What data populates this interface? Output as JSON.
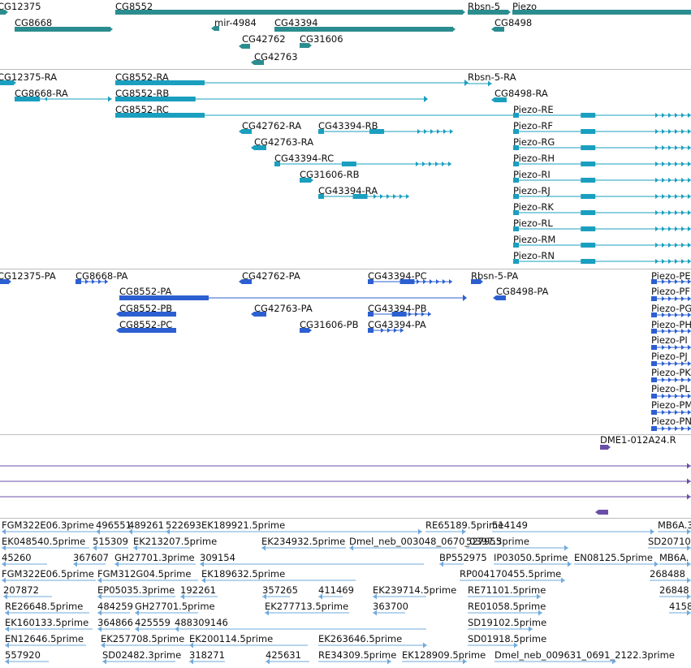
{
  "tracks": [
    {
      "id": "genes",
      "color": "#2b8d8f",
      "features": [
        {
          "label": "CG12375",
          "strand": "+"
        },
        {
          "label": "CG8552",
          "strand": "+"
        },
        {
          "label": "Rbsn-5",
          "strand": "+"
        },
        {
          "label": "Piezo",
          "strand": "+"
        },
        {
          "label": "CG8668",
          "strand": "+"
        },
        {
          "label": "mir-4984",
          "strand": "-"
        },
        {
          "label": "CG43394",
          "strand": "+"
        },
        {
          "label": "CG8498",
          "strand": "-"
        },
        {
          "label": "CG42762",
          "strand": "-"
        },
        {
          "label": "CG31606",
          "strand": "+"
        },
        {
          "label": "CG42763",
          "strand": "-"
        }
      ]
    },
    {
      "id": "transcripts",
      "color": "#1a9fbf",
      "features": [
        {
          "label": "CG12375-RA",
          "strand": "+"
        },
        {
          "label": "CG8552-RA",
          "strand": "-"
        },
        {
          "label": "Rbsn-5-RA",
          "strand": "+"
        },
        {
          "label": "CG8668-RA",
          "strand": "+"
        },
        {
          "label": "CG8552-RB",
          "strand": "-"
        },
        {
          "label": "CG8498-RA",
          "strand": "-"
        },
        {
          "label": "CG8552-RC",
          "strand": "-"
        },
        {
          "label": "Piezo-RE",
          "strand": "+"
        },
        {
          "label": "CG42762-RA",
          "strand": "-"
        },
        {
          "label": "CG43394-RB",
          "strand": "+"
        },
        {
          "label": "Piezo-RF",
          "strand": "+"
        },
        {
          "label": "CG42763-RA",
          "strand": "-"
        },
        {
          "label": "Piezo-RG",
          "strand": "+"
        },
        {
          "label": "CG43394-RC",
          "strand": "+"
        },
        {
          "label": "Piezo-RH",
          "strand": "+"
        },
        {
          "label": "CG31606-RB",
          "strand": "+"
        },
        {
          "label": "Piezo-RI",
          "strand": "+"
        },
        {
          "label": "CG43394-RA",
          "strand": "+"
        },
        {
          "label": "Piezo-RJ",
          "strand": "+"
        },
        {
          "label": "Piezo-RK",
          "strand": "+"
        },
        {
          "label": "Piezo-RL",
          "strand": "+"
        },
        {
          "label": "Piezo-RM",
          "strand": "+"
        },
        {
          "label": "Piezo-RN",
          "strand": "+"
        }
      ]
    },
    {
      "id": "proteins",
      "color": "#2c5fd1",
      "features": [
        {
          "label": "CG12375-PA",
          "strand": "+"
        },
        {
          "label": "CG8668-PA",
          "strand": "+"
        },
        {
          "label": "CG42762-PA",
          "strand": "-"
        },
        {
          "label": "CG43394-PC",
          "strand": "+"
        },
        {
          "label": "Rbsn-5-PA",
          "strand": "+"
        },
        {
          "label": "Piezo-PE",
          "strand": "+"
        },
        {
          "label": "CG8552-PA",
          "strand": "-"
        },
        {
          "label": "CG8498-PA",
          "strand": "-"
        },
        {
          "label": "Piezo-PF",
          "strand": "+"
        },
        {
          "label": "CG8552-PB",
          "strand": "-"
        },
        {
          "label": "CG42763-PA",
          "strand": "-"
        },
        {
          "label": "CG43394-PB",
          "strand": "+"
        },
        {
          "label": "Piezo-PG",
          "strand": "+"
        },
        {
          "label": "CG8552-PC",
          "strand": "-"
        },
        {
          "label": "CG31606-PB",
          "strand": "+"
        },
        {
          "label": "CG43394-PA",
          "strand": "+"
        },
        {
          "label": "Piezo-PH",
          "strand": "+"
        },
        {
          "label": "Piezo-PI",
          "strand": "+"
        },
        {
          "label": "Piezo-PJ",
          "strand": "+"
        },
        {
          "label": "Piezo-PK",
          "strand": "+"
        },
        {
          "label": "Piezo-PL",
          "strand": "+"
        },
        {
          "label": "Piezo-PM",
          "strand": "+"
        },
        {
          "label": "Piezo-PN",
          "strand": "+"
        }
      ]
    },
    {
      "id": "clones",
      "color": "#6a4fa8",
      "features": [
        {
          "label": "DME1-012A24.R",
          "strand": "+"
        },
        {
          "label": "",
          "strand": "+"
        },
        {
          "label": "",
          "strand": "+"
        },
        {
          "label": "",
          "strand": "+"
        },
        {
          "label": "",
          "strand": "-"
        }
      ]
    },
    {
      "id": "ests",
      "color": "#6fa9db",
      "features": [
        {
          "label": "FGM322E06.3prime",
          "strand": "-"
        },
        {
          "label": "496551",
          "strand": "-"
        },
        {
          "label": "489261",
          "strand": "-"
        },
        {
          "label": "522693",
          "strand": "-"
        },
        {
          "label": "EK189921.5prime",
          "strand": "+"
        },
        {
          "label": "RE65189.5prime",
          "strand": "+"
        },
        {
          "label": "514149",
          "strand": "+"
        },
        {
          "label": "MB6A.3",
          "strand": "+"
        },
        {
          "label": "EK048540.5prime",
          "strand": "-"
        },
        {
          "label": "515309",
          "strand": "-"
        },
        {
          "label": "EK213207.5prime",
          "strand": "-"
        },
        {
          "label": "EK234932.5prime",
          "strand": "-"
        },
        {
          "label": "Dmel_neb_003048_0670_0397.3prime",
          "strand": "-"
        },
        {
          "label": "527955",
          "strand": "+"
        },
        {
          "label": "SD20710",
          "strand": "+"
        },
        {
          "label": "45260",
          "strand": "-"
        },
        {
          "label": "367607",
          "strand": "-"
        },
        {
          "label": "GH27701.3prime",
          "strand": "-"
        },
        {
          "label": "309154",
          "strand": "-"
        },
        {
          "label": "BP552975",
          "strand": "-"
        },
        {
          "label": "IP03050.5prime",
          "strand": "+"
        },
        {
          "label": "EN08125.5prime",
          "strand": "+"
        },
        {
          "label": "MB6A.",
          "strand": "+"
        },
        {
          "label": "FGM322E06.5prime",
          "strand": "-"
        },
        {
          "label": "FGM312G04.5prime",
          "strand": "-"
        },
        {
          "label": "EK189632.5prime",
          "strand": "-"
        },
        {
          "label": "RP004170455.5prime",
          "strand": "+"
        },
        {
          "label": "268488",
          "strand": "+"
        },
        {
          "label": "207872",
          "strand": "-"
        },
        {
          "label": "EP05035.3prime",
          "strand": "-"
        },
        {
          "label": "192261",
          "strand": "-"
        },
        {
          "label": "357265",
          "strand": "-"
        },
        {
          "label": "411469",
          "strand": "-"
        },
        {
          "label": "EK239714.5prime",
          "strand": "-"
        },
        {
          "label": "RE71101.5prime",
          "strand": "+"
        },
        {
          "label": "26848",
          "strand": "+"
        },
        {
          "label": "RE26648.5prime",
          "strand": "-"
        },
        {
          "label": "484259",
          "strand": "-"
        },
        {
          "label": "GH27701.5prime",
          "strand": "-"
        },
        {
          "label": "EK277713.5prime",
          "strand": "-"
        },
        {
          "label": "363700",
          "strand": "-"
        },
        {
          "label": "RE01058.5prime",
          "strand": "+"
        },
        {
          "label": "4158",
          "strand": "+"
        },
        {
          "label": "EK160133.5prime",
          "strand": "-"
        },
        {
          "label": "364866",
          "strand": "-"
        },
        {
          "label": "425559",
          "strand": "-"
        },
        {
          "label": "488309146",
          "strand": "-"
        },
        {
          "label": "SD19102.5prime",
          "strand": "+"
        },
        {
          "label": "EN12646.5prime",
          "strand": "-"
        },
        {
          "label": "EK257708.5prime",
          "strand": "-"
        },
        {
          "label": "EK200114.5prime",
          "strand": "-"
        },
        {
          "label": "EK263646.5prime",
          "strand": "+"
        },
        {
          "label": "SD01918.5prime",
          "strand": "+"
        },
        {
          "label": "557920",
          "strand": "-"
        },
        {
          "label": "SD02482.3prime",
          "strand": "-"
        },
        {
          "label": "318271",
          "strand": "-"
        },
        {
          "label": "425631",
          "strand": "-"
        },
        {
          "label": "RE34309.5prime",
          "strand": "+"
        },
        {
          "label": "EK128909.5prime",
          "strand": "+"
        },
        {
          "label": "Dmel_neb_009631_0691_2122.3prime",
          "strand": "+"
        }
      ]
    }
  ]
}
